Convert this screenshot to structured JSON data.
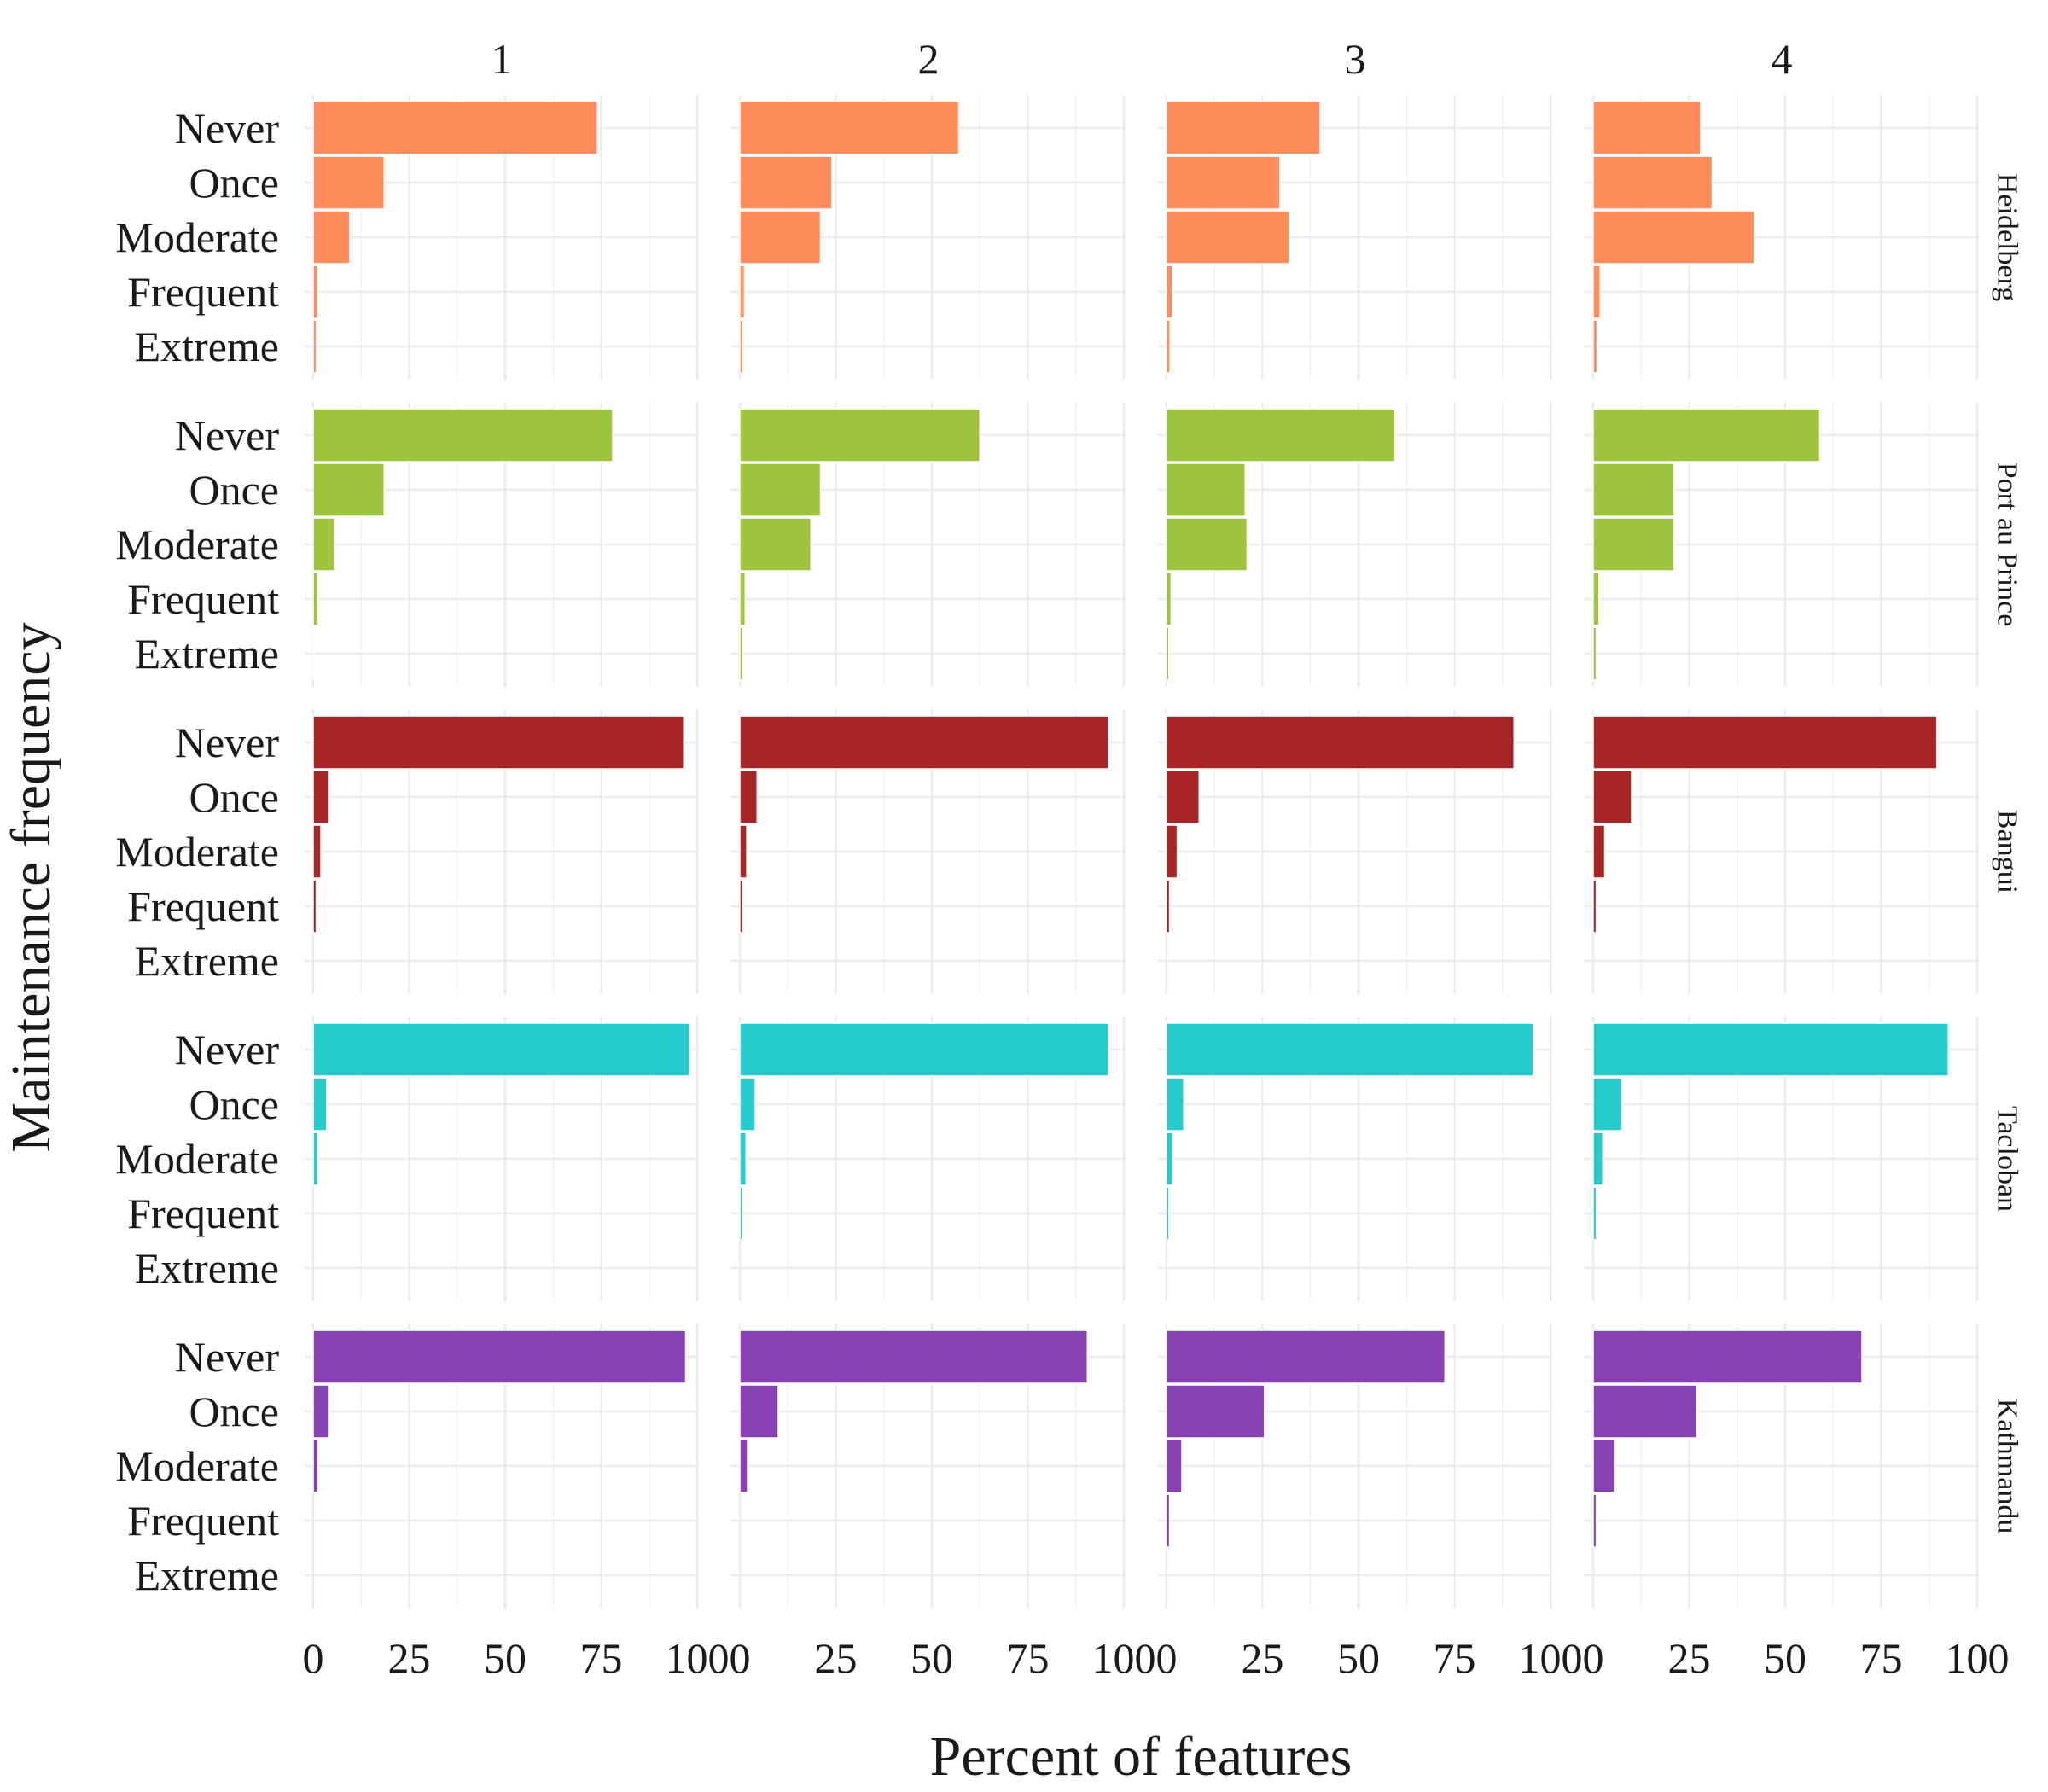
{
  "chart_data": {
    "type": "bar",
    "orientation": "horizontal",
    "facet_columns": [
      "1",
      "2",
      "3",
      "4"
    ],
    "facet_rows": [
      "Heidelberg",
      "Port au Prince",
      "Bangui",
      "Tacloban",
      "Kathmandu"
    ],
    "categories": [
      "Never",
      "Once",
      "Moderate",
      "Frequent",
      "Extreme"
    ],
    "xlabel": "Percent of features",
    "ylabel": "Maintenance frequency",
    "x_ticks": [
      "0",
      "25",
      "50",
      "75",
      "100"
    ],
    "xlim": [
      0,
      100
    ],
    "grid": true,
    "legend": "none",
    "colors": {
      "Heidelberg": "#FF8C5A",
      "Port au Prince": "#9CC53D",
      "Bangui": "#A62424",
      "Tacloban": "#26CCCC",
      "Kathmandu": "#8840B3"
    },
    "values": {
      "Heidelberg": [
        [
          74,
          18.5,
          9.5,
          1.2,
          0.8
        ],
        [
          57,
          24,
          21,
          1.2,
          0.8
        ],
        [
          40,
          29.5,
          32,
          1.5,
          0.9
        ],
        [
          28,
          31,
          42,
          1.8,
          1
        ]
      ],
      "Port au Prince": [
        [
          78,
          18.5,
          5.5,
          1.2,
          0.3
        ],
        [
          62.5,
          21,
          18.5,
          1.4,
          0.8
        ],
        [
          59.5,
          20.5,
          21,
          1.2,
          0.6
        ],
        [
          59,
          21,
          21,
          1.5,
          0.8
        ]
      ],
      "Bangui": [
        [
          96.5,
          4,
          2,
          0.8,
          0
        ],
        [
          96,
          4.5,
          1.8,
          0.8,
          0
        ],
        [
          90.5,
          8.5,
          2.8,
          0.8,
          0
        ],
        [
          89.5,
          10,
          3,
          0.8,
          0
        ]
      ],
      "Tacloban": [
        [
          98,
          3.5,
          1.2,
          0,
          0
        ],
        [
          96,
          4,
          1.6,
          0.6,
          0
        ],
        [
          95.5,
          4.5,
          1.6,
          0.6,
          0
        ],
        [
          92.5,
          7.5,
          2.5,
          0.8,
          0
        ]
      ],
      "Kathmandu": [
        [
          97,
          4,
          1.2,
          0,
          0
        ],
        [
          90.5,
          10,
          2,
          0,
          0
        ],
        [
          72.5,
          25.5,
          4,
          0.8,
          0
        ],
        [
          70,
          27,
          5.5,
          0.8,
          0
        ]
      ]
    }
  }
}
